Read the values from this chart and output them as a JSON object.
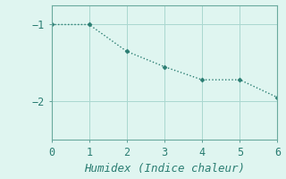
{
  "x": [
    0,
    1,
    2,
    3,
    4,
    5,
    6
  ],
  "y": [
    -1.0,
    -1.0,
    -1.35,
    -1.55,
    -1.72,
    -1.72,
    -1.95
  ],
  "line_color": "#2a7d72",
  "marker": "D",
  "marker_size": 2.5,
  "background_color": "#dff5f0",
  "grid_color": "#aad8d0",
  "spine_color": "#6aaa9e",
  "xlabel": "Humidex (Indice chaleur)",
  "xlabel_style": "italic",
  "xlim": [
    0,
    6
  ],
  "ylim": [
    -2.5,
    -0.75
  ],
  "yticks": [
    -2,
    -1
  ],
  "xticks": [
    0,
    1,
    2,
    3,
    4,
    5,
    6
  ],
  "tick_color": "#2a7d72",
  "label_color": "#2a7d72",
  "font_family": "monospace",
  "font_size": 8.5,
  "xlabel_fontsize": 9
}
